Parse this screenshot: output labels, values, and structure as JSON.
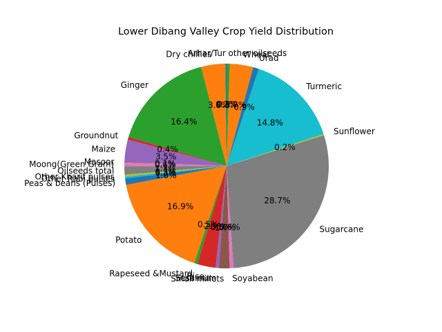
{
  "chart_data": {
    "type": "pie",
    "title": "Lower Dibang Valley Crop Yield Distribution",
    "start_angle_deg": 90,
    "direction": "counterclockwise",
    "slices": [
      {
        "label": "Arhar/Tur",
        "value": 0.2,
        "pct_text": "0.2%",
        "color": "#1f77b4"
      },
      {
        "label": "Dry chillies",
        "value": 3.8,
        "pct_text": "3.8%",
        "color": "#ff7f0e"
      },
      {
        "label": "Ginger",
        "value": 16.4,
        "pct_text": "16.4%",
        "color": "#2ca02c"
      },
      {
        "label": "Groundnut",
        "value": 0.4,
        "pct_text": "0.4%",
        "color": "#d62728"
      },
      {
        "label": "Maize",
        "value": 3.5,
        "pct_text": "3.5%",
        "color": "#9467bd"
      },
      {
        "label": "Masoor",
        "value": 0.1,
        "pct_text": "0.1%",
        "color": "#8c564b"
      },
      {
        "label": "Moong(Green Gram)",
        "value": 0.6,
        "pct_text": "0.6%",
        "color": "#e377c2"
      },
      {
        "label": "Oilseeds total",
        "value": 1.3,
        "pct_text": "1.3%",
        "color": "#7f7f7f"
      },
      {
        "label": "Other Kharif pulses",
        "value": 0.3,
        "pct_text": "0.3%",
        "color": "#bcbd22"
      },
      {
        "label": "Other Rabi pulses",
        "value": 0.3,
        "pct_text": "0.3%",
        "color": "#17becf"
      },
      {
        "label": "Peas & beans (Pulses)",
        "value": 1.0,
        "pct_text": "1.0%",
        "color": "#1f77b4"
      },
      {
        "label": "Potato",
        "value": 16.9,
        "pct_text": "16.9%",
        "color": "#ff7f0e"
      },
      {
        "label": "Rapeseed &Mustard",
        "value": 0.5,
        "pct_text": "0.5%",
        "color": "#2ca02c"
      },
      {
        "label": "Rice",
        "value": 2.9,
        "pct_text": "2.9%",
        "color": "#d62728"
      },
      {
        "label": "Sesamum",
        "value": 0.5,
        "pct_text": "0.5%",
        "color": "#9467bd"
      },
      {
        "label": "Small millets",
        "value": 1.7,
        "pct_text": "1.7%",
        "color": "#8c564b"
      },
      {
        "label": "Soyabean",
        "value": 0.6,
        "pct_text": "0.6%",
        "color": "#e377c2"
      },
      {
        "label": "Sugarcane",
        "value": 28.7,
        "pct_text": "28.7%",
        "color": "#7f7f7f"
      },
      {
        "label": "Sunflower",
        "value": 0.2,
        "pct_text": "0.2%",
        "color": "#bcbd22"
      },
      {
        "label": "Turmeric",
        "value": 14.8,
        "pct_text": "14.8%",
        "color": "#17becf"
      },
      {
        "label": "Urad",
        "value": 0.9,
        "pct_text": "0.9%",
        "color": "#1f77b4"
      },
      {
        "label": "Wheat",
        "value": 3.7,
        "pct_text": "3.7%",
        "color": "#ff7f0e"
      },
      {
        "label": "other oilseeds",
        "value": 0.5,
        "pct_text": "0.5%",
        "color": "#2ca02c"
      }
    ]
  }
}
